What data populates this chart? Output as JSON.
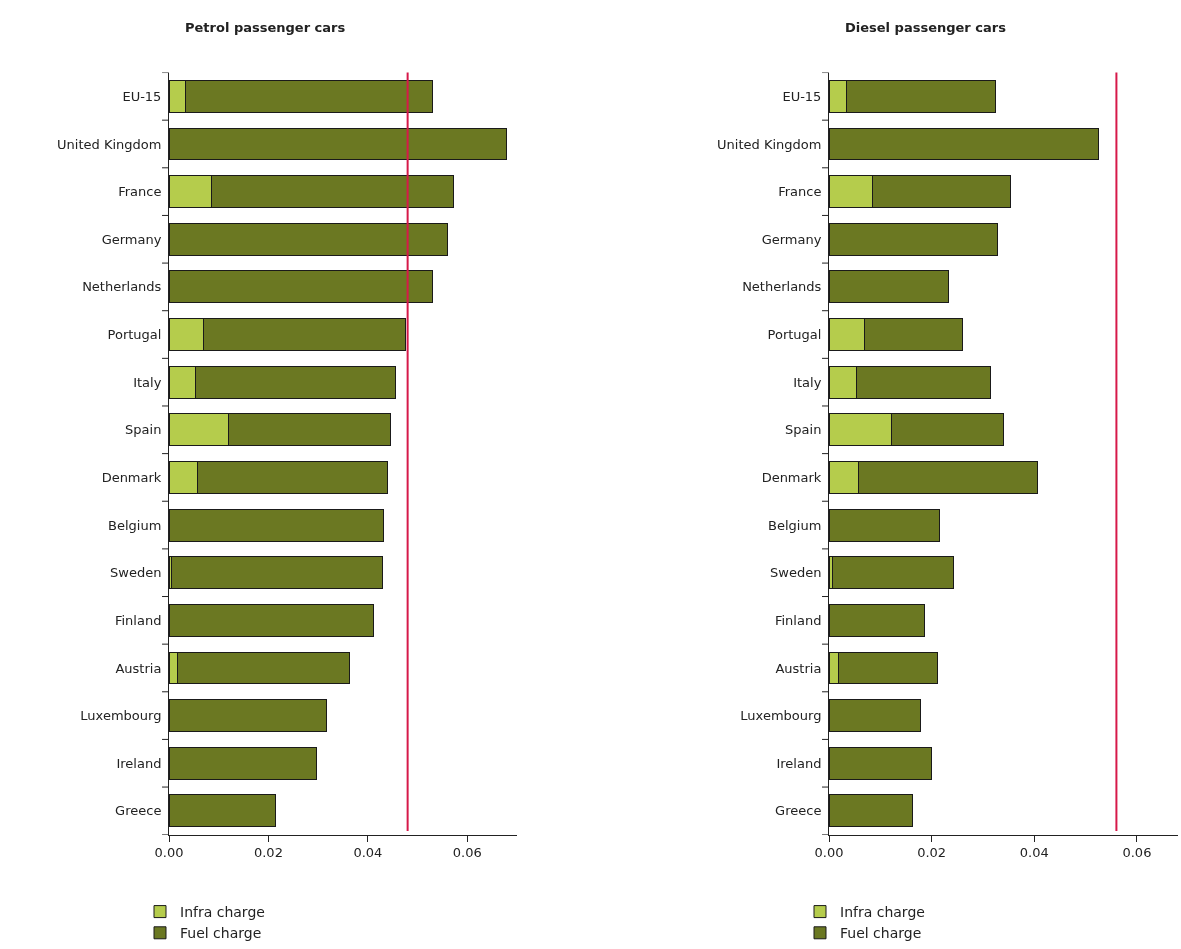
{
  "chart_data": [
    {
      "type": "bar",
      "orientation": "horizontal",
      "stacked": true,
      "title": "Petrol passenger cars",
      "categories": [
        "EU-15",
        "United Kingdom",
        "France",
        "Germany",
        "Netherlands",
        "Portugal",
        "Italy",
        "Spain",
        "Denmark",
        "Belgium",
        "Sweden",
        "Finland",
        "Austria",
        "Luxembourg",
        "Ireland",
        "Greece"
      ],
      "series": [
        {
          "name": "Infra charge",
          "color": "#b5cc4c",
          "values": [
            0.0034,
            0,
            0.0085,
            0,
            0,
            0.007,
            0.0054,
            0.012,
            0.0058,
            0,
            0.0005,
            0,
            0.0017,
            0,
            0,
            0
          ]
        },
        {
          "name": "Fuel charge",
          "color": "#6b7822",
          "values": [
            0.0496,
            0.0678,
            0.0488,
            0.056,
            0.0531,
            0.0406,
            0.0401,
            0.0325,
            0.0381,
            0.0432,
            0.0425,
            0.0412,
            0.0346,
            0.0316,
            0.0297,
            0.0215
          ]
        }
      ],
      "xlim": [
        0,
        0.07
      ],
      "xticks": [
        {
          "value": 0,
          "label": "0.00"
        },
        {
          "value": 0.02,
          "label": "0.02"
        },
        {
          "value": 0.04,
          "label": "0.04"
        },
        {
          "value": 0.06,
          "label": "0.06"
        }
      ],
      "ref_lines": [
        {
          "axis": "x",
          "value": 0.048,
          "color": "#d6194a"
        }
      ],
      "legend": "bottom"
    },
    {
      "type": "bar",
      "orientation": "horizontal",
      "stacked": true,
      "title": "Diesel passenger cars",
      "categories": [
        "EU-15",
        "United Kingdom",
        "France",
        "Germany",
        "Netherlands",
        "Portugal",
        "Italy",
        "Spain",
        "Denmark",
        "Belgium",
        "Sweden",
        "Finland",
        "Austria",
        "Luxembourg",
        "Ireland",
        "Greece"
      ],
      "series": [
        {
          "name": "Infra charge",
          "color": "#b5cc4c",
          "values": [
            0.0034,
            0,
            0.0085,
            0,
            0,
            0.0069,
            0.0054,
            0.0121,
            0.0058,
            0,
            0.0006,
            0,
            0.0019,
            0,
            0,
            0
          ]
        },
        {
          "name": "Fuel charge",
          "color": "#6b7822",
          "values": [
            0.029,
            0.0525,
            0.0268,
            0.0328,
            0.0233,
            0.0192,
            0.0261,
            0.0219,
            0.0349,
            0.0216,
            0.0237,
            0.0187,
            0.0192,
            0.0179,
            0.02,
            0.0163
          ]
        }
      ],
      "xlim": [
        0,
        0.068
      ],
      "xticks": [
        {
          "value": 0,
          "label": "0.00"
        },
        {
          "value": 0.02,
          "label": "0.02"
        },
        {
          "value": 0.04,
          "label": "0.04"
        },
        {
          "value": 0.06,
          "label": "0.06"
        }
      ],
      "ref_lines": [
        {
          "axis": "x",
          "value": 0.056,
          "color": "#d6194a"
        }
      ],
      "legend": "bottom"
    }
  ]
}
